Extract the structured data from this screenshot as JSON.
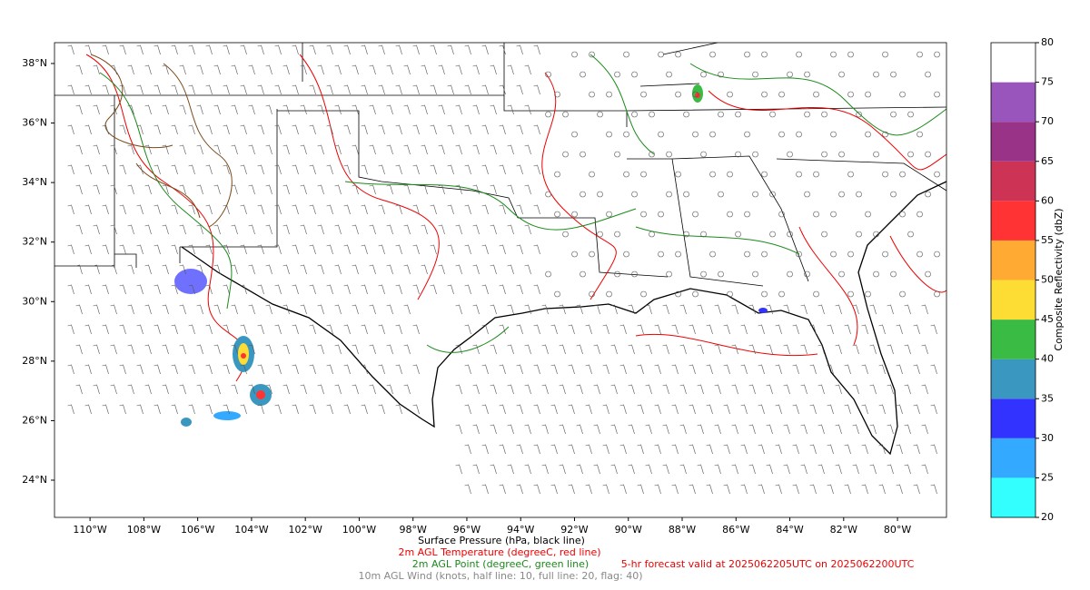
{
  "map": {
    "lonlim": [
      -111.32,
      -78.18
    ],
    "latlim": [
      22.75,
      38.7
    ],
    "lonticks": [
      {
        "value": -110,
        "label": "110°W"
      },
      {
        "value": -108,
        "label": "108°W"
      },
      {
        "value": -106,
        "label": "106°W"
      },
      {
        "value": -104,
        "label": "104°W"
      },
      {
        "value": -102,
        "label": "102°W"
      },
      {
        "value": -100,
        "label": "100°W"
      },
      {
        "value": -98,
        "label": "98°W"
      },
      {
        "value": -96,
        "label": "96°W"
      },
      {
        "value": -94,
        "label": "94°W"
      },
      {
        "value": -92,
        "label": "92°W"
      },
      {
        "value": -90,
        "label": "90°W"
      },
      {
        "value": -88,
        "label": "88°W"
      },
      {
        "value": -86,
        "label": "86°W"
      },
      {
        "value": -84,
        "label": "84°W"
      },
      {
        "value": -82,
        "label": "82°W"
      },
      {
        "value": -80,
        "label": "80°W"
      }
    ],
    "latticks": [
      {
        "value": 24,
        "label": "24°N"
      },
      {
        "value": 26,
        "label": "26°N"
      },
      {
        "value": 28,
        "label": "28°N"
      },
      {
        "value": 30,
        "label": "30°N"
      },
      {
        "value": 32,
        "label": "32°N"
      },
      {
        "value": 34,
        "label": "34°N"
      },
      {
        "value": 36,
        "label": "36°N"
      },
      {
        "value": 38,
        "label": "38°N"
      }
    ]
  },
  "colorbar": {
    "label": "Composite Reflectivity (dbZ)",
    "lim": [
      20,
      80
    ],
    "ticks": [
      20,
      25,
      30,
      35,
      40,
      45,
      50,
      55,
      60,
      65,
      70,
      75,
      80
    ],
    "colors": [
      "#33ffff",
      "#33aaff",
      "#3333ff",
      "#3a98c0",
      "#39bb44",
      "#fddd33",
      "#ffaa33",
      "#ff3333",
      "#cc3355",
      "#993388",
      "#9955bb",
      "#ffffff"
    ]
  },
  "captions": {
    "pressure": "Surface Pressure (hPa, black line)",
    "temperature": "2m AGL Temperature (degreeC, red line)",
    "dewpoint": "2m AGL Point (degreeC, green line)",
    "wind": "10m AGL Wind (knots, half line: 10, full line: 20, flag: 40)",
    "forecast": "5-hr forecast valid at 2025062205UTC on 2025062200UTC"
  }
}
